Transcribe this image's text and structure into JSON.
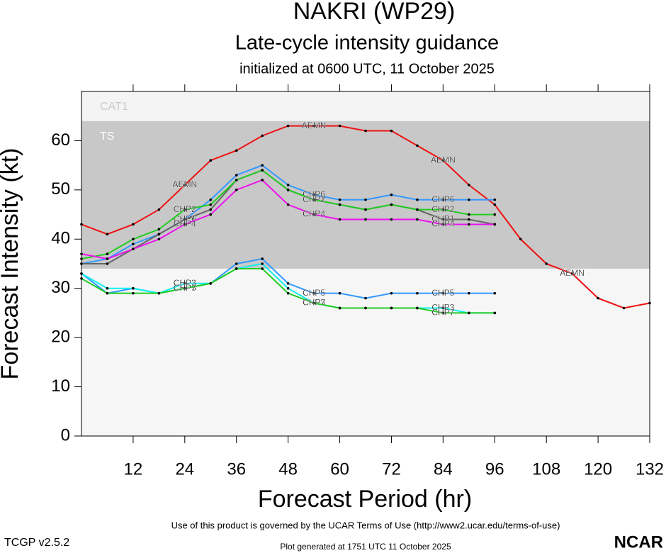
{
  "chart_data": {
    "type": "line",
    "title": "NAKRI (WP29)",
    "subtitle": "Late-cycle intensity guidance",
    "subtitle2": "initialized at 0600 UTC, 11 October 2025",
    "x_label": "Forecast Period (hr)",
    "y_label": "Forecast Intensity (kt)",
    "xlim": [
      0,
      132
    ],
    "ylim": [
      0,
      70
    ],
    "xticks": [
      12,
      24,
      36,
      48,
      60,
      72,
      84,
      96,
      108,
      120,
      132
    ],
    "yticks": [
      0,
      10,
      20,
      30,
      40,
      50,
      60
    ],
    "bands": [
      {
        "name": "TS",
        "from": 34,
        "to": 64,
        "color": "#c8c8c8"
      },
      {
        "name": "CAT1",
        "from": 64,
        "to": 70,
        "color": "#f4f4f4"
      }
    ],
    "x": [
      0,
      6,
      12,
      18,
      24,
      30,
      36,
      42,
      48,
      54,
      60,
      66,
      72,
      78,
      84,
      90,
      96,
      102,
      108,
      114,
      120,
      126,
      132
    ],
    "series": [
      {
        "name": "AEMN",
        "color": "#ee1111",
        "values": [
          43,
          41,
          43,
          46,
          51,
          56,
          58,
          61,
          63,
          63,
          63,
          62,
          62,
          59,
          56,
          51,
          47,
          40,
          35,
          33,
          28,
          26,
          27
        ]
      },
      {
        "name": "CHP6",
        "color": "#3399ff",
        "values": [
          35,
          36,
          39,
          41,
          44,
          48,
          53,
          55,
          51,
          49,
          48,
          48,
          49,
          48,
          48,
          48,
          48,
          null,
          null,
          null,
          null,
          null,
          null
        ]
      },
      {
        "name": "CHP1",
        "color": "#666666",
        "values": [
          35,
          35,
          38,
          41,
          44,
          46,
          52,
          54,
          50,
          48,
          47,
          46,
          47,
          46,
          44,
          44,
          43,
          null,
          null,
          null,
          null,
          null,
          null
        ]
      },
      {
        "name": "CHP2",
        "color": "#22cc22",
        "values": [
          36,
          37,
          40,
          42,
          46,
          47,
          52,
          54,
          50,
          48,
          47,
          46,
          47,
          46,
          46,
          45,
          45,
          null,
          null,
          null,
          null,
          null,
          null
        ]
      },
      {
        "name": "CHP4",
        "color": "#ee11ee",
        "values": [
          37,
          36,
          38,
          40,
          43,
          45,
          50,
          52,
          47,
          45,
          44,
          44,
          44,
          44,
          43,
          43,
          43,
          null,
          null,
          null,
          null,
          null,
          null
        ]
      },
      {
        "name": "CHP5",
        "color": "#3399ff",
        "values": [
          33,
          29,
          30,
          29,
          30,
          31,
          35,
          36,
          31,
          29,
          29,
          28,
          29,
          29,
          29,
          29,
          29,
          null,
          null,
          null,
          null,
          null,
          null
        ]
      },
      {
        "name": "CHP3",
        "color": "#11eeee",
        "values": [
          33,
          30,
          30,
          29,
          31,
          31,
          34,
          35,
          30,
          27,
          26,
          26,
          26,
          26,
          26,
          25,
          25,
          null,
          null,
          null,
          null,
          null,
          null
        ]
      },
      {
        "name": "CHP7",
        "color": "#22cc22",
        "values": [
          32,
          29,
          29,
          29,
          30,
          31,
          34,
          34,
          29,
          27,
          26,
          26,
          26,
          26,
          25,
          25,
          25,
          null,
          null,
          null,
          null,
          null,
          null
        ]
      }
    ],
    "footer": "Use of this product is governed by the UCAR Terms of Use (http://www2.ucar.edu/terms-of-use)",
    "version": "TCGP v2.5.2",
    "generated": "Plot generated at 1751 UTC   11 October 2025",
    "logo": "NCAR"
  }
}
